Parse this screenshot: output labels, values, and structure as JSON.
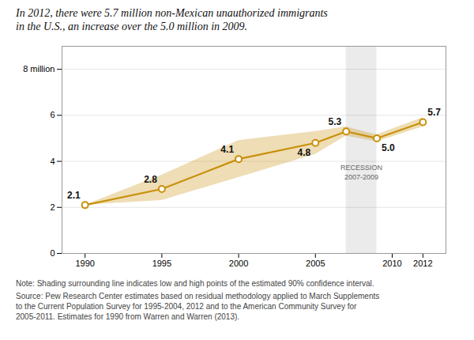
{
  "chart_data": {
    "type": "line",
    "title": "In 2012, there were 5.7 million non-Mexican unauthorized immigrants",
    "subtitle": "in the U.S., an increase over the 5.0 million in 2009.",
    "x": [
      1990,
      1995,
      2000,
      2005,
      2007,
      2009,
      2012
    ],
    "values": [
      2.1,
      2.8,
      4.1,
      4.8,
      5.3,
      5.0,
      5.7
    ],
    "value_labels": [
      "2.1",
      "2.8",
      "4.1",
      "4.8",
      "5.3",
      "5.0",
      "5.7"
    ],
    "ci_low": [
      2.1,
      2.3,
      3.3,
      4.3,
      5.1,
      4.85,
      5.5
    ],
    "ci_high": [
      2.1,
      3.4,
      4.9,
      5.3,
      5.5,
      5.15,
      5.9
    ],
    "color": "#c8900a",
    "marker": "circle",
    "data_labels": true,
    "xlim": [
      1988.5,
      2013.5
    ],
    "xticks": [
      1990,
      1995,
      2000,
      2005,
      2010,
      2012
    ],
    "ylim": [
      0,
      9
    ],
    "yticks": [
      0,
      2,
      4,
      6,
      {
        "value": 8,
        "label": "8 million"
      }
    ],
    "grid": true,
    "annotations": [
      {
        "type": "span",
        "x": [
          2007,
          2009
        ],
        "text": "RECESSION\n2007-2009"
      }
    ],
    "note": "Note: Shading surrounding line indicates low and high points of the estimated 90% confidence interval.",
    "source": [
      "Source: Pew Research Center estimates based on residual methodology applied to March Supplements",
      "to the Current Population Survey for 1995-2004, 2012 and to the American Community Survey for",
      "2005-2011. Estimates for 1990 from Warren and Warren (2013)."
    ]
  }
}
